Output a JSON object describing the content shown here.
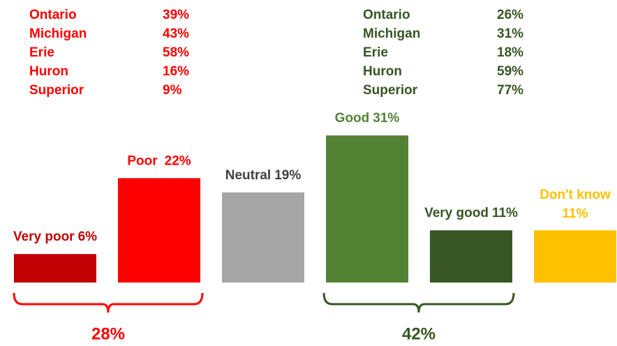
{
  "chart_data": {
    "type": "bar",
    "categories": [
      "Very poor",
      "Poor",
      "Neutral",
      "Good",
      "Very good",
      "Don't know"
    ],
    "values": [
      6,
      22,
      19,
      31,
      11,
      11
    ],
    "value_labels": [
      "6%",
      "22%",
      "19%",
      "31%",
      "11%",
      "11%"
    ],
    "colors": [
      "#c00000",
      "#ff0000",
      "#a6a6a6",
      "#548235",
      "#375623",
      "#ffc000"
    ],
    "label_colors": [
      "#c00000",
      "#ff0000",
      "#404040",
      "#548235",
      "#375623",
      "#ffc000"
    ],
    "ylim": [
      0,
      35
    ],
    "group_totals": [
      {
        "value": 28,
        "label": "28%",
        "color": "#ff0000"
      },
      {
        "value": 42,
        "label": "42%",
        "color": "#375623"
      }
    ],
    "lake_tables": [
      {
        "color": "#ff0000",
        "rows": [
          [
            "Ontario",
            "39%"
          ],
          [
            "Michigan",
            "43%"
          ],
          [
            "Erie",
            "58%"
          ],
          [
            "Huron",
            "16%"
          ],
          [
            "Superior",
            "9%"
          ]
        ]
      },
      {
        "color": "#375623",
        "rows": [
          [
            "Ontario",
            "26%"
          ],
          [
            "Michigan",
            "31%"
          ],
          [
            "Erie",
            "18%"
          ],
          [
            "Huron",
            "59%"
          ],
          [
            "Superior",
            "77%"
          ]
        ]
      }
    ]
  }
}
